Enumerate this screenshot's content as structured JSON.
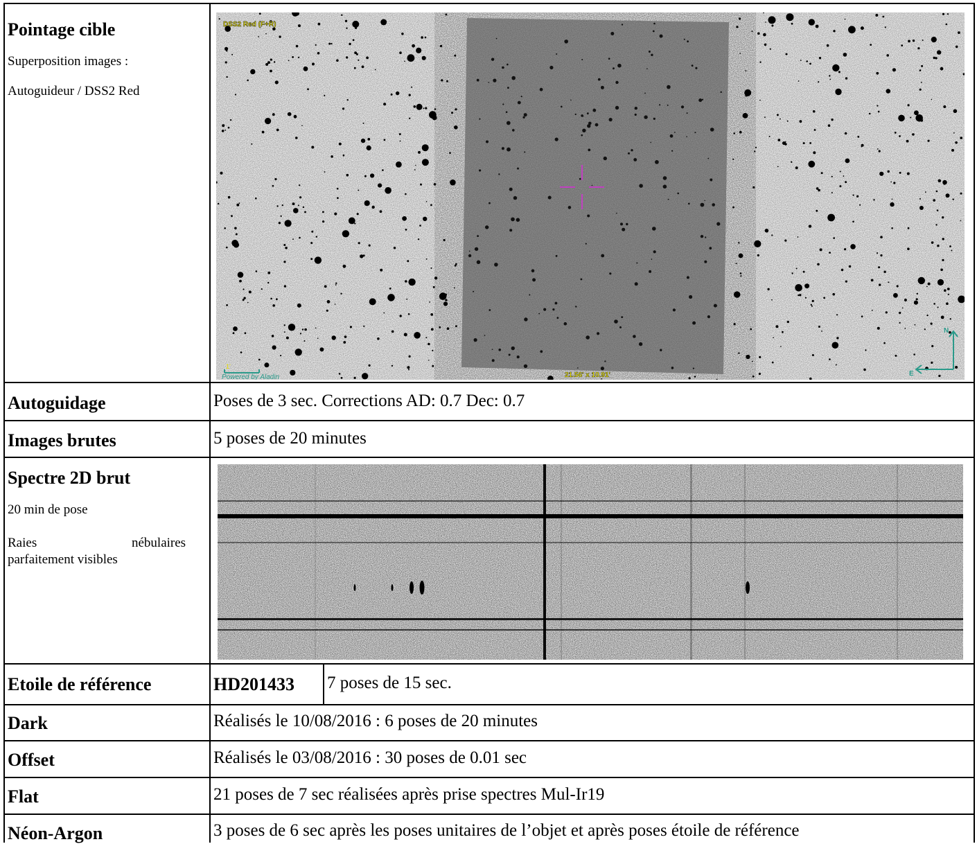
{
  "table": {
    "row1": {
      "label": "Pointage cible",
      "note_line1": "Superposition images :",
      "note_line2": "Autoguideur / DSS2 Red",
      "image": {
        "corner_label": "DSS2 Red (F+R)",
        "footer_label": "Powered by Aladin",
        "scale_label": "1'",
        "fov_label": "21.56' x 10.91'",
        "compass_n": "N",
        "compass_e": "E"
      }
    },
    "row2": {
      "label": "Autoguidage",
      "value": "Poses de 3 sec. Corrections AD: 0.7 Dec: 0.7"
    },
    "row3": {
      "label": "Images brutes",
      "value": "5 poses de 20 minutes"
    },
    "row4": {
      "label": "Spectre 2D brut",
      "note_line1": "20 min de pose",
      "note_line2a": "Raies",
      "note_line2b": "nébulaires",
      "note_line3": "parfaitement visibles"
    },
    "row5": {
      "label": "Etoile de référence",
      "star": "HD201433",
      "value": "7 poses de 15 sec."
    },
    "row6": {
      "label": "Dark",
      "value": "Réalisés le 10/08/2016 : 6 poses de 20 minutes"
    },
    "row7": {
      "label": "Offset",
      "value": "Réalisés le 03/08/2016 : 30 poses de 0.01 sec"
    },
    "row8": {
      "label": "Flat",
      "value": "21 poses de 7 sec réalisées après prise spectres Mul-Ir19"
    },
    "row9": {
      "label": "Néon-Argon",
      "value": "3 poses de 6 sec après les poses unitaires de l’objet et après poses étoile de référence"
    }
  },
  "colors": {
    "crosshair": "#c040c0",
    "overlay_label": "#e8e000",
    "compass": "#2a9a8a"
  }
}
